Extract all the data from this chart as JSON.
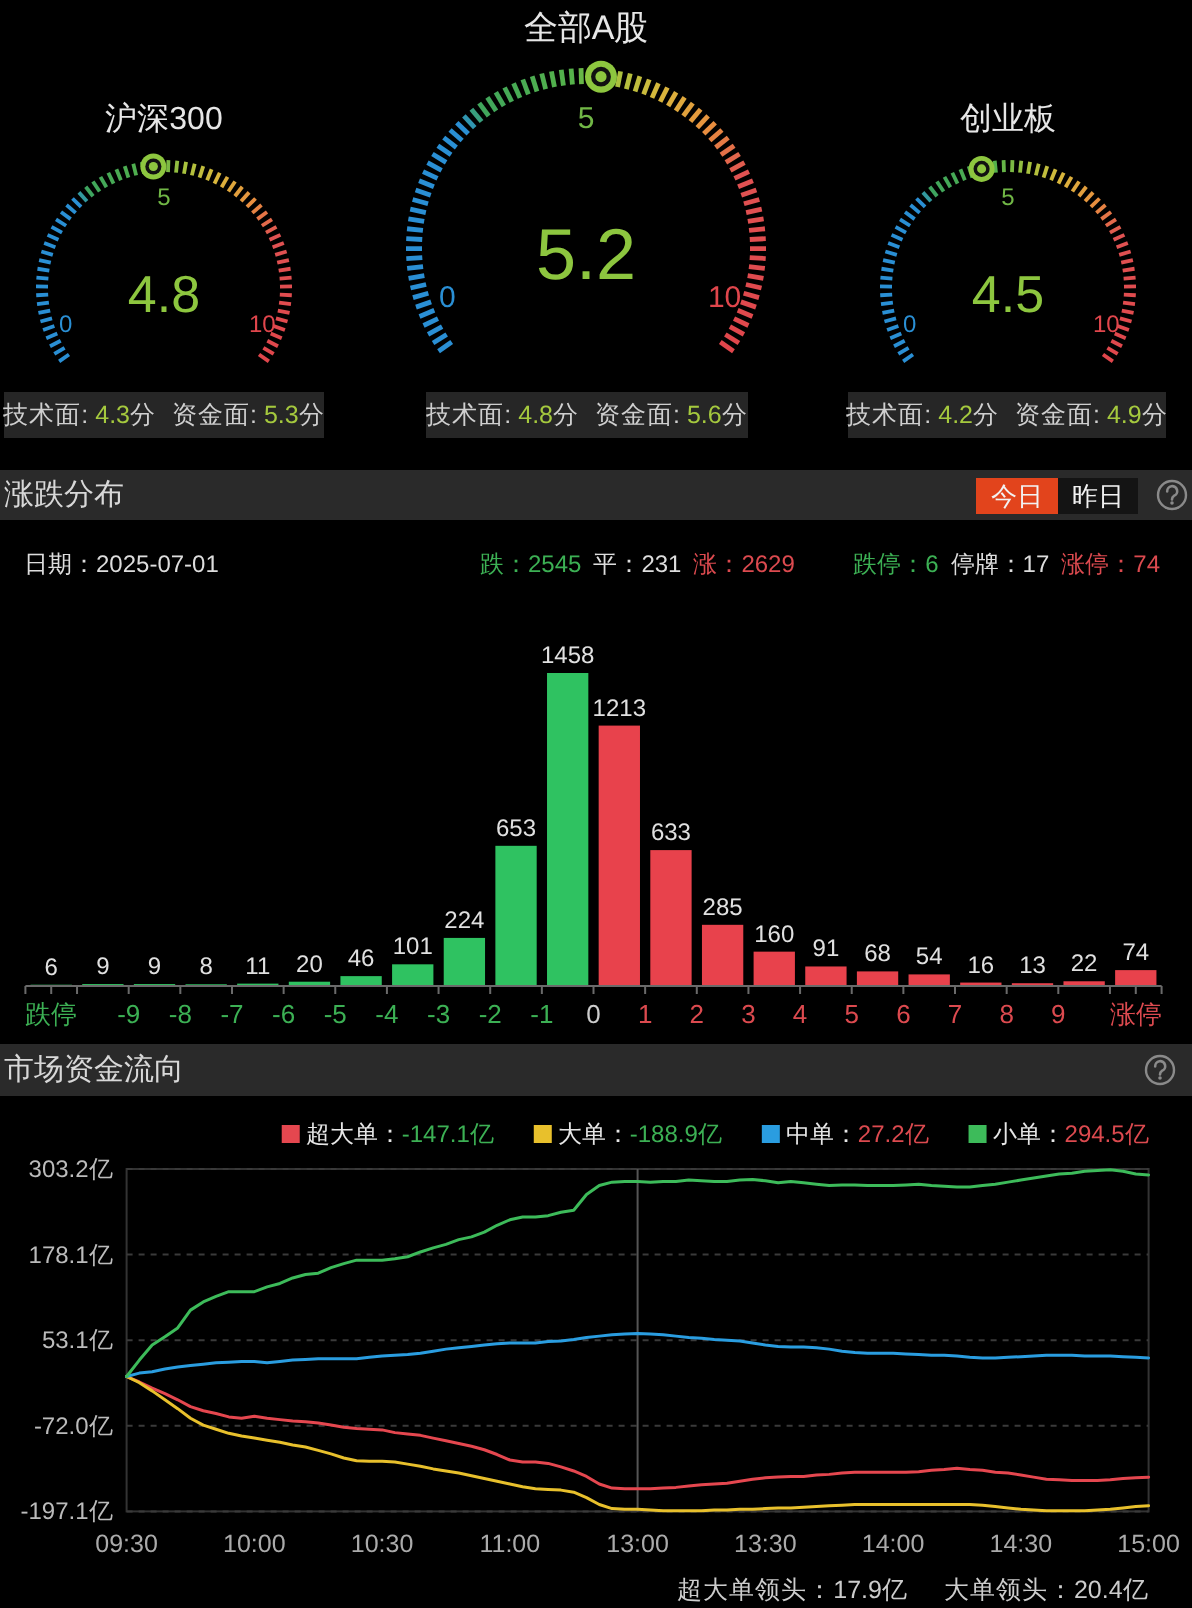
{
  "chart_data": [
    {
      "type": "other",
      "title": "沪深300",
      "values": [
        4.8
      ],
      "data_labels": true,
      "annotations": [
        "0",
        "5",
        "10",
        "技术面: 4.3分",
        "资金面: 5.3分"
      ]
    },
    {
      "type": "other",
      "title": "全部A股",
      "values": [
        5.2
      ],
      "data_labels": true,
      "annotations": [
        "0",
        "5",
        "10",
        "技术面: 4.8分",
        "资金面: 5.6分"
      ]
    },
    {
      "type": "other",
      "title": "创业板",
      "values": [
        4.5
      ],
      "data_labels": true,
      "annotations": [
        "0",
        "5",
        "10",
        "技术面: 4.2分",
        "资金面: 4.9分"
      ]
    },
    {
      "type": "bar",
      "title": "涨跌分布",
      "x": [
        -10.5,
        -9.5,
        -8.5,
        -7.5,
        -6.5,
        -5.5,
        -4.5,
        -3.5,
        -2.5,
        -1.5,
        -0.5,
        0.5,
        1.5,
        2.5,
        3.5,
        4.5,
        5.5,
        6.5,
        7.5,
        8.5,
        9.5,
        10.5
      ],
      "values": [
        6,
        9,
        9,
        8,
        11,
        20,
        46,
        101,
        224,
        653,
        1458,
        1213,
        633,
        285,
        160,
        91,
        68,
        54,
        16,
        13,
        22,
        74
      ],
      "colors": [
        "#2fc261",
        "#2fc261",
        "#2fc261",
        "#2fc261",
        "#2fc261",
        "#2fc261",
        "#2fc261",
        "#2fc261",
        "#2fc261",
        "#2fc261",
        "#2fc261",
        "#e8424c",
        "#e8424c",
        "#e8424c",
        "#e8424c",
        "#e8424c",
        "#e8424c",
        "#e8424c",
        "#e8424c",
        "#e8424c",
        "#e8424c",
        "#e8424c"
      ],
      "xlim": [
        -11,
        11
      ],
      "xticks": [
        {
          "value": -11,
          "label": null
        },
        {
          "value": -10.5,
          "label": "跌停"
        },
        {
          "value": -10,
          "label": null
        },
        -9,
        -8,
        -7,
        -6,
        -5,
        -4,
        -3,
        -2,
        -1,
        0,
        1,
        2,
        3,
        4,
        5,
        6,
        7,
        8,
        9,
        {
          "value": 10,
          "label": null
        },
        {
          "value": 10.5,
          "label": "涨停"
        },
        {
          "value": 11,
          "label": null
        }
      ],
      "data_labels": true,
      "annotations": [
        "日期：2025-07-01",
        "跌：2545",
        "平：231",
        "涨：2629",
        "跌停：6",
        "停牌：17",
        "涨停：74",
        "今日",
        "昨日"
      ]
    },
    {
      "type": "line",
      "title": "市场资金流向",
      "categories": [
        "09:30",
        null,
        null,
        null,
        null,
        null,
        null,
        null,
        null,
        null,
        "10:00",
        null,
        null,
        null,
        null,
        null,
        null,
        null,
        null,
        null,
        "10:30",
        null,
        null,
        null,
        null,
        null,
        null,
        null,
        null,
        null,
        "11:00",
        null,
        null,
        null,
        null,
        null,
        null,
        null,
        null,
        null,
        "13:00",
        null,
        null,
        null,
        null,
        null,
        null,
        null,
        null,
        null,
        "13:30",
        null,
        null,
        null,
        null,
        null,
        null,
        null,
        null,
        null,
        "14:00",
        null,
        null,
        null,
        null,
        null,
        null,
        null,
        null,
        null,
        "14:30",
        null,
        null,
        null,
        null,
        null,
        null,
        null,
        null,
        null,
        "15:00"
      ],
      "series": [
        {
          "name": "超大单：-147.1亿",
          "color": "#e5474f",
          "values": [
            0,
            -8,
            -17,
            -25,
            -34,
            -44,
            -50,
            -54,
            -59,
            -61,
            -58,
            -61,
            -63,
            -65,
            -66,
            -68,
            -71,
            -74,
            -76,
            -77,
            -78,
            -82,
            -84,
            -86,
            -90,
            -94,
            -98,
            -102,
            -107,
            -114,
            -122,
            -125,
            -125,
            -127,
            -132,
            -138,
            -146,
            -157,
            -163,
            -164,
            -164,
            -164,
            -163,
            -162,
            -160,
            -158,
            -157,
            -156,
            -153,
            -150,
            -148,
            -147,
            -146,
            -146,
            -144,
            -143,
            -141,
            -140,
            -140,
            -140,
            -140,
            -140,
            -139,
            -137,
            -136,
            -134,
            -136,
            -137,
            -140,
            -141,
            -144,
            -147,
            -150,
            -151,
            -152,
            -152,
            -152,
            -151,
            -149,
            -148,
            -147.1
          ]
        },
        {
          "name": "大单：-188.9亿",
          "color": "#e8c02c",
          "values": [
            0,
            -9,
            -21,
            -34,
            -47,
            -61,
            -71,
            -77,
            -83,
            -87,
            -90,
            -93,
            -96,
            -100,
            -103,
            -108,
            -113,
            -119,
            -123,
            -124,
            -124,
            -125,
            -128,
            -131,
            -135,
            -138,
            -141,
            -145,
            -149,
            -153,
            -157,
            -161,
            -164,
            -165,
            -166,
            -169,
            -177,
            -187,
            -193,
            -194,
            -194,
            -195,
            -196,
            -196,
            -196,
            -196,
            -195,
            -195,
            -194,
            -194,
            -193,
            -192,
            -192,
            -191,
            -190,
            -189,
            -188,
            -187,
            -187,
            -187,
            -187,
            -187,
            -187,
            -187,
            -187,
            -187,
            -187,
            -188,
            -190,
            -192,
            -194,
            -195,
            -196,
            -196,
            -196,
            -196,
            -195,
            -194,
            -192,
            -190,
            -188.9
          ]
        },
        {
          "name": "中单：27.2亿",
          "color": "#2a9de0",
          "values": [
            0,
            5,
            7,
            11,
            14,
            16,
            18,
            20,
            21,
            22,
            22,
            20,
            22,
            24,
            25,
            26,
            26,
            26,
            26,
            28,
            30,
            31,
            32,
            34,
            37,
            40,
            42,
            44,
            46,
            48,
            49,
            49,
            49,
            51,
            52,
            54,
            57,
            59,
            61,
            62,
            63,
            62,
            61,
            59,
            57,
            56,
            54,
            53,
            52,
            49,
            46,
            44,
            43,
            43,
            42,
            40,
            37,
            35,
            34,
            34,
            34,
            33,
            32,
            31,
            31,
            30,
            28,
            27,
            27,
            28,
            29,
            30,
            31,
            31,
            31,
            30,
            30,
            30,
            29,
            28,
            27.2
          ]
        },
        {
          "name": "小单：294.5亿",
          "color": "#3dbb5a",
          "values": [
            0,
            24,
            46,
            58,
            71,
            97,
            109,
            117,
            124,
            124,
            124,
            131,
            136,
            144,
            149,
            151,
            159,
            165,
            170,
            170,
            170,
            172,
            175,
            182,
            188,
            193,
            200,
            204,
            211,
            221,
            229,
            233,
            233,
            235,
            240,
            243,
            266,
            279,
            284,
            285,
            285,
            284,
            285,
            285,
            287,
            286,
            285,
            285,
            287,
            288,
            286,
            283,
            285,
            283,
            281,
            279,
            280,
            280,
            279,
            279,
            279,
            280,
            281,
            279,
            278,
            277,
            277,
            279,
            281,
            284,
            287,
            290,
            293,
            296,
            297,
            300,
            301,
            302,
            300,
            296,
            294.5
          ]
        }
      ],
      "ylim": [
        -197.1,
        303.2
      ],
      "yticks": [
        {
          "value": -197.1,
          "label": "-197.1亿"
        },
        {
          "value": -72.0,
          "label": "-72.0亿"
        },
        {
          "value": 53.1,
          "label": "53.1亿"
        },
        {
          "value": 178.1,
          "label": "178.1亿"
        },
        {
          "value": 303.2,
          "label": "303.2亿"
        }
      ],
      "grid": "y",
      "legend": "top right",
      "ref_lines": [
        {
          "axis": "x",
          "value": "13:00"
        }
      ],
      "annotations": [
        "超大单领头：17.9亿",
        "大单领头：20.4亿"
      ]
    }
  ]
}
